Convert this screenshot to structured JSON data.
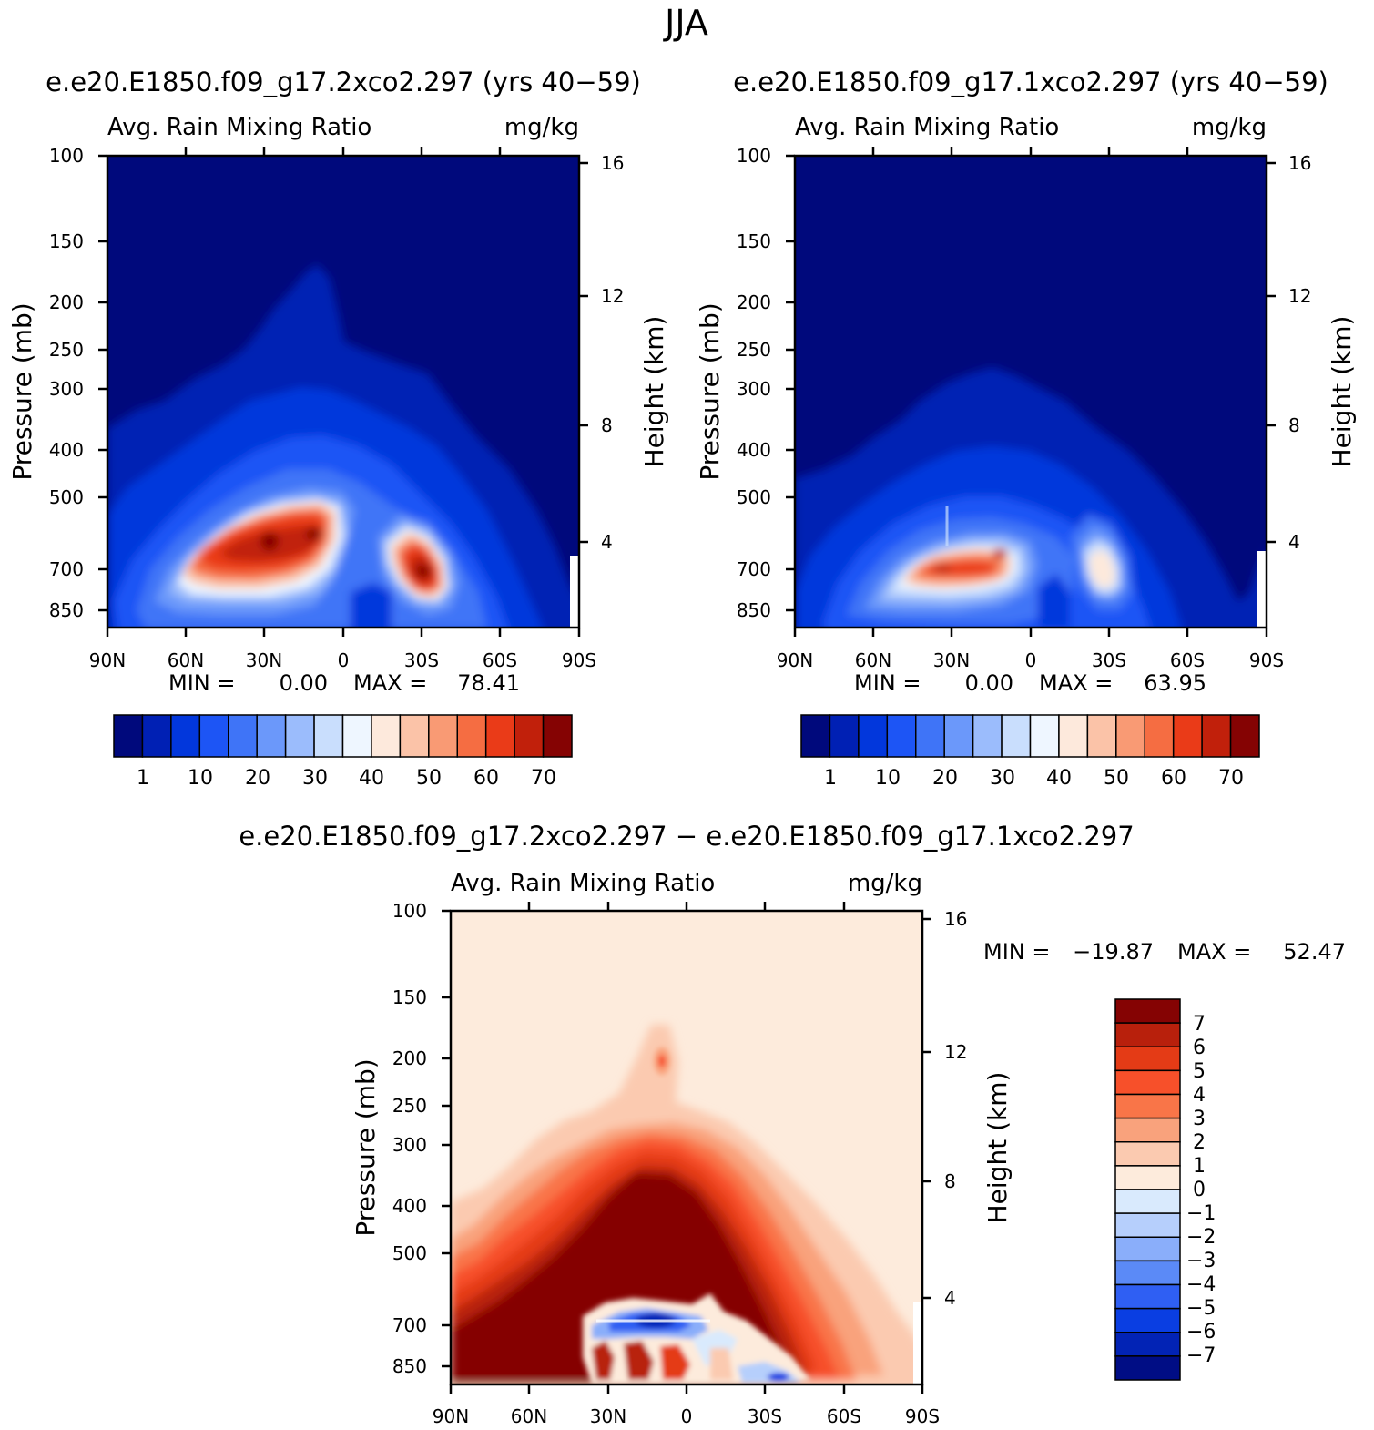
{
  "figure": {
    "title": "JJA"
  },
  "chart_data": [
    {
      "type": "heatmap",
      "id": "panel1",
      "title": "e.e20.E1850.f09_g17.2xco2.297 (yrs 40−59)",
      "subtitle_left": "Avg. Rain Mixing Ratio",
      "subtitle_right": "mg/kg",
      "xlabel": "",
      "ylabel": "Pressure (mb)",
      "ylabel_right": "Height (km)",
      "x_ticks": [
        "90N",
        "60N",
        "30N",
        "0",
        "30S",
        "60S",
        "90S"
      ],
      "y_ticks": [
        "100",
        "150",
        "200",
        "250",
        "300",
        "400",
        "500",
        "700",
        "850"
      ],
      "y_ticks_right": [
        "16",
        "12",
        "8",
        "4"
      ],
      "min_label": "MIN =",
      "min_value": "0.00",
      "max_label": "MAX =",
      "max_value": "78.41",
      "levels": [
        1,
        5,
        10,
        15,
        20,
        25,
        30,
        35,
        40,
        45,
        50,
        55,
        60,
        65,
        70
      ],
      "colorbar_labels": [
        "1",
        "10",
        "20",
        "30",
        "40",
        "50",
        "60",
        "70"
      ],
      "colors": [
        "#00097c",
        "#0020b4",
        "#0237dc",
        "#1d55f5",
        "#3f74f7",
        "#6b98fa",
        "#9bbcfc",
        "#c9defd",
        "#eef6ff",
        "#fde9dc",
        "#fbc3a8",
        "#f99a74",
        "#f56d42",
        "#ea3b18",
        "#c1200b",
        "#850303"
      ]
    },
    {
      "type": "heatmap",
      "id": "panel2",
      "title": "e.e20.E1850.f09_g17.1xco2.297 (yrs 40−59)",
      "subtitle_left": "Avg. Rain Mixing Ratio",
      "subtitle_right": "mg/kg",
      "xlabel": "",
      "ylabel": "Pressure (mb)",
      "ylabel_right": "Height (km)",
      "x_ticks": [
        "90N",
        "60N",
        "30N",
        "0",
        "30S",
        "60S",
        "90S"
      ],
      "y_ticks": [
        "100",
        "150",
        "200",
        "250",
        "300",
        "400",
        "500",
        "700",
        "850"
      ],
      "y_ticks_right": [
        "16",
        "12",
        "8",
        "4"
      ],
      "min_label": "MIN =",
      "min_value": "0.00",
      "max_label": "MAX =",
      "max_value": "63.95",
      "levels": [
        1,
        5,
        10,
        15,
        20,
        25,
        30,
        35,
        40,
        45,
        50,
        55,
        60,
        65,
        70
      ],
      "colorbar_labels": [
        "1",
        "10",
        "20",
        "30",
        "40",
        "50",
        "60",
        "70"
      ],
      "colors": [
        "#00097c",
        "#0020b4",
        "#0237dc",
        "#1d55f5",
        "#3f74f7",
        "#6b98fa",
        "#9bbcfc",
        "#c9defd",
        "#eef6ff",
        "#fde9dc",
        "#fbc3a8",
        "#f99a74",
        "#f56d42",
        "#ea3b18",
        "#c1200b",
        "#850303"
      ]
    },
    {
      "type": "heatmap",
      "id": "diff",
      "title": "e.e20.E1850.f09_g17.2xco2.297 − e.e20.E1850.f09_g17.1xco2.297",
      "subtitle_left": "Avg. Rain Mixing Ratio",
      "subtitle_right": "mg/kg",
      "xlabel": "",
      "ylabel": "Pressure (mb)",
      "ylabel_right": "Height (km)",
      "x_ticks": [
        "90N",
        "60N",
        "30N",
        "0",
        "30S",
        "60S",
        "90S"
      ],
      "y_ticks": [
        "100",
        "150",
        "200",
        "250",
        "300",
        "400",
        "500",
        "700",
        "850"
      ],
      "y_ticks_right": [
        "16",
        "12",
        "8",
        "4"
      ],
      "min_label": "MIN =",
      "min_value": "−19.87",
      "max_label": "MAX =",
      "max_value": "52.47",
      "levels": [
        -7,
        -6,
        -5,
        -4,
        -3,
        -2,
        -1,
        0,
        1,
        2,
        3,
        4,
        5,
        6,
        7
      ],
      "colorbar_labels": [
        "7",
        "6",
        "5",
        "4",
        "3",
        "2",
        "1",
        "0",
        "−1",
        "−2",
        "−3",
        "−4",
        "−5",
        "−6",
        "−7"
      ],
      "colors": [
        "#850303",
        "#b8200c",
        "#e43b16",
        "#f7502a",
        "#f97548",
        "#f9a27c",
        "#fbcab0",
        "#fdebdc",
        "#d9eafd",
        "#b6cffc",
        "#8aaefa",
        "#5b8af7",
        "#2f5ff3",
        "#0a3ee2",
        "#0223b5",
        "#000d85"
      ]
    }
  ]
}
